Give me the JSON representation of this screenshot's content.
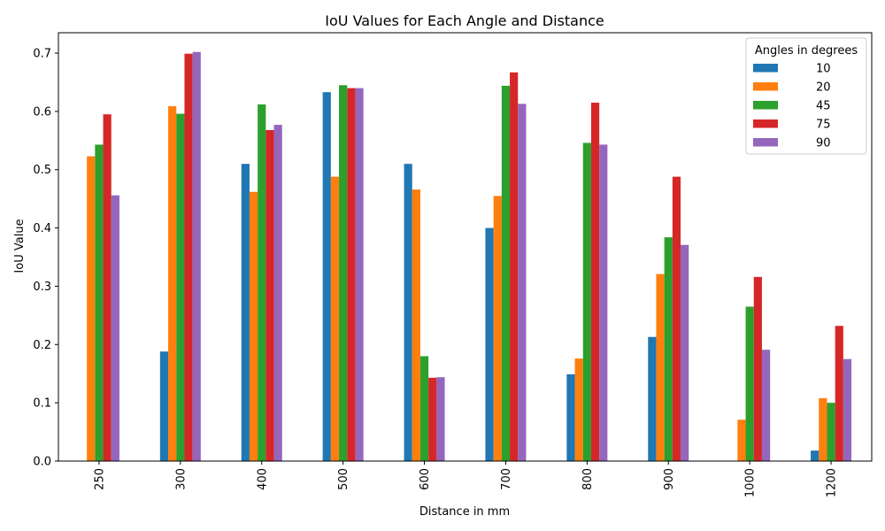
{
  "chart_data": {
    "type": "bar",
    "title": "IoU Values for Each Angle and Distance",
    "xlabel": "Distance in mm",
    "ylabel": "IoU Value",
    "ylim": [
      0,
      0.735
    ],
    "yticks": [
      "0.0",
      "0.1",
      "0.2",
      "0.3",
      "0.4",
      "0.5",
      "0.6",
      "0.7"
    ],
    "categories": [
      "250",
      "300",
      "400",
      "500",
      "600",
      "700",
      "800",
      "900",
      "1000",
      "1200"
    ],
    "legend_title": "Angles in degrees",
    "legend_position": "top-right",
    "grid": false,
    "series": [
      {
        "name": "10",
        "color": "#1f77b4",
        "values": [
          0,
          0.188,
          0.51,
          0.633,
          0.51,
          0.4,
          0.149,
          0.213,
          0,
          0.018
        ]
      },
      {
        "name": "20",
        "color": "#ff7f0e",
        "values": [
          0.523,
          0.609,
          0.462,
          0.488,
          0.466,
          0.455,
          0.176,
          0.321,
          0.071,
          0.108
        ]
      },
      {
        "name": "45",
        "color": "#2ca02c",
        "values": [
          0.543,
          0.596,
          0.612,
          0.645,
          0.18,
          0.644,
          0.546,
          0.384,
          0.265,
          0.1
        ]
      },
      {
        "name": "75",
        "color": "#d62728",
        "values": [
          0.595,
          0.699,
          0.568,
          0.64,
          0.143,
          0.667,
          0.615,
          0.488,
          0.316,
          0.232
        ]
      },
      {
        "name": "90",
        "color": "#9467bd",
        "values": [
          0.456,
          0.702,
          0.577,
          0.64,
          0.144,
          0.613,
          0.543,
          0.371,
          0.191,
          0.175
        ]
      }
    ]
  }
}
